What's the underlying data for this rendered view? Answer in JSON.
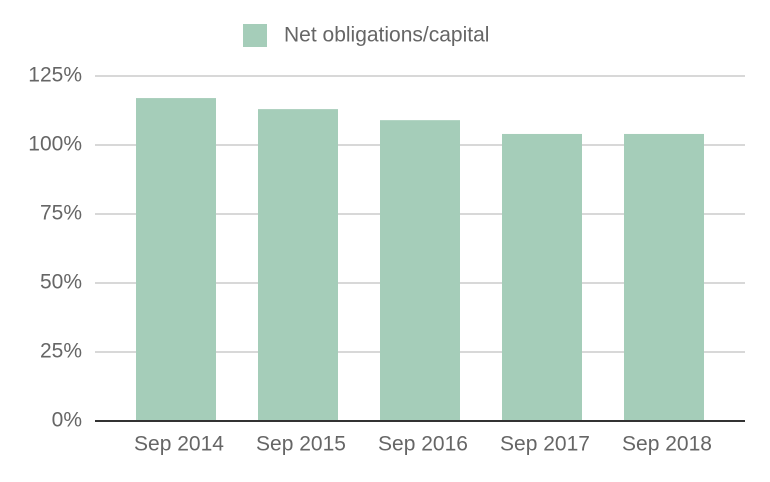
{
  "chart_data": {
    "type": "bar",
    "categories": [
      "Sep 2014",
      "Sep 2015",
      "Sep 2016",
      "Sep 2017",
      "Sep 2018"
    ],
    "series": [
      {
        "name": "Net obligations/capital",
        "color": "#a5cdb9",
        "values": [
          117,
          113,
          109,
          104,
          104
        ]
      }
    ],
    "ylim": [
      0,
      125
    ],
    "yticks": [
      {
        "value": 0,
        "label": "0%"
      },
      {
        "value": 25,
        "label": "25%"
      },
      {
        "value": 50,
        "label": "50%"
      },
      {
        "value": 75,
        "label": "75%"
      },
      {
        "value": 100,
        "label": "100%"
      },
      {
        "value": 125,
        "label": "125%"
      }
    ],
    "grid": true,
    "legend": "top"
  }
}
